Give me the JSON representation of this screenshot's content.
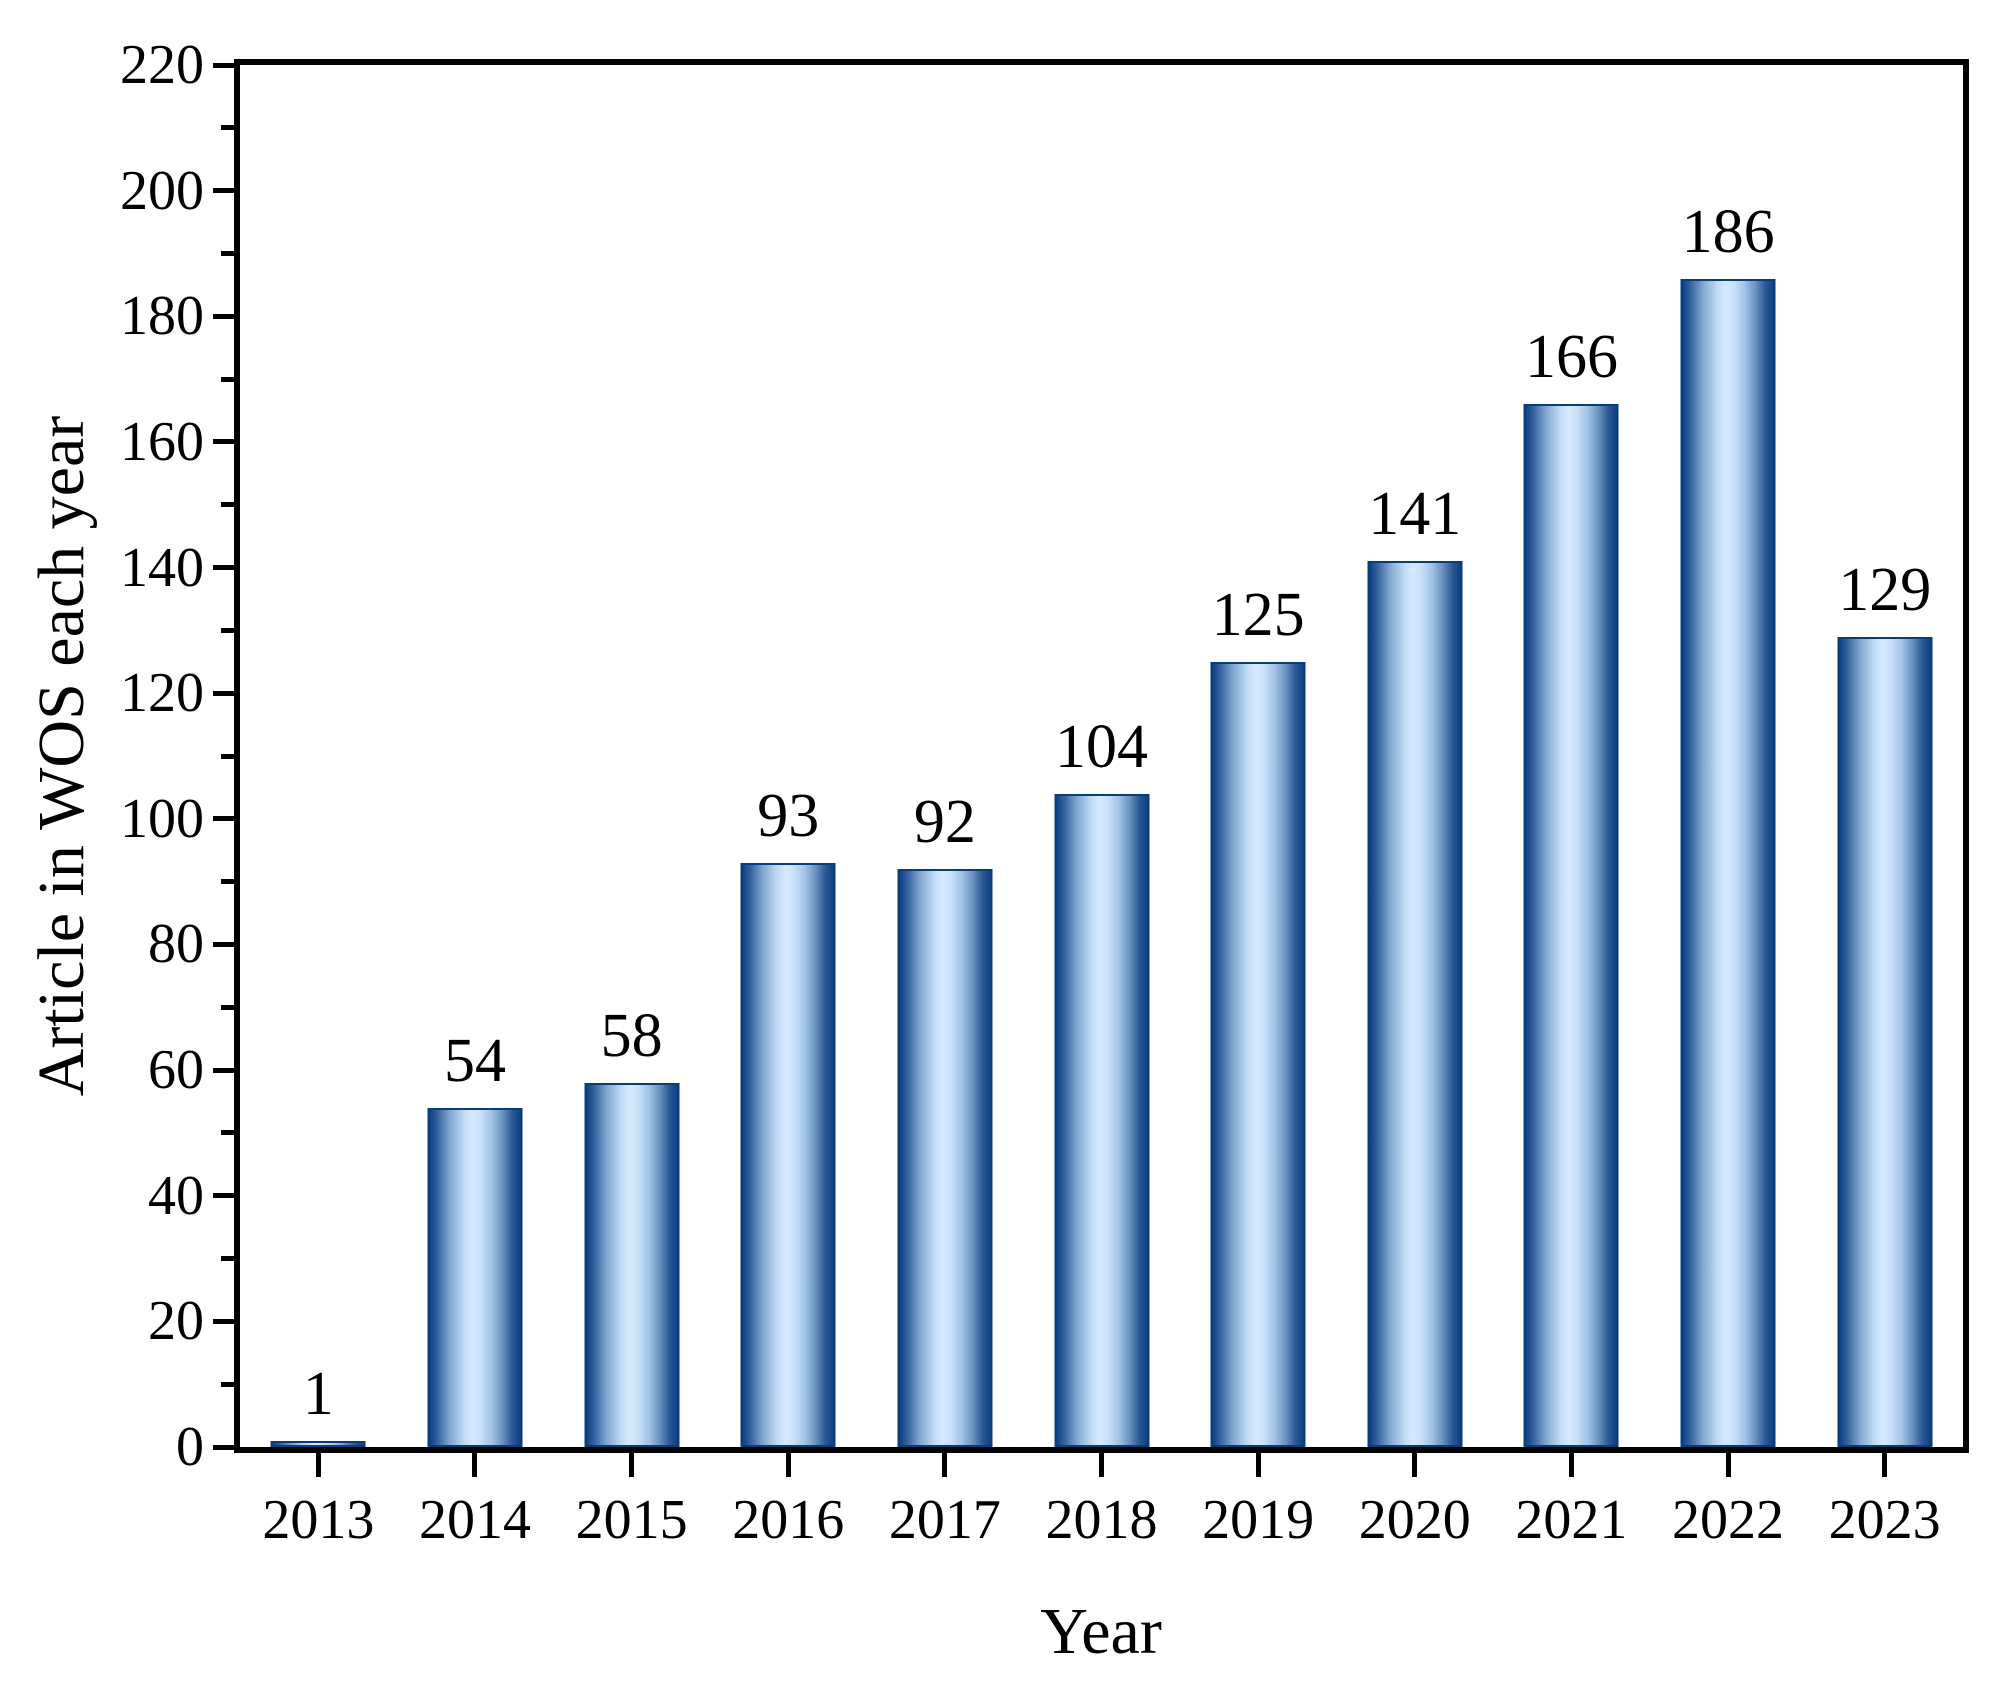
{
  "chart_data": {
    "type": "bar",
    "title": "",
    "xlabel": "Year",
    "ylabel": "Article in WOS each year",
    "categories": [
      "2013",
      "2014",
      "2015",
      "2016",
      "2017",
      "2018",
      "2019",
      "2020",
      "2021",
      "2022",
      "2023"
    ],
    "values": [
      1,
      54,
      58,
      93,
      92,
      104,
      125,
      141,
      166,
      186,
      129
    ],
    "bar_value_labels": [
      "1",
      "54",
      "58",
      "93",
      "92",
      "104",
      "125",
      "141",
      "166",
      "186",
      "129"
    ],
    "ylim": [
      0,
      220
    ],
    "yticks": [
      0,
      20,
      40,
      60,
      80,
      100,
      120,
      140,
      160,
      180,
      200,
      220
    ],
    "ytick_labels": [
      "0",
      "20",
      "40",
      "60",
      "80",
      "100",
      "120",
      "140",
      "160",
      "180",
      "200",
      "220"
    ],
    "y_minor_ticks": [
      10,
      30,
      50,
      70,
      90,
      110,
      130,
      150,
      170,
      190,
      210
    ],
    "grid": false,
    "legend": null,
    "frame": "full-box",
    "colors": {
      "bar_edge": "#0b3c7a",
      "bar_dark": "#0c4184",
      "bar_light": "#d6eafe",
      "axis": "#000000",
      "text": "#000000",
      "background": "#ffffff"
    }
  }
}
